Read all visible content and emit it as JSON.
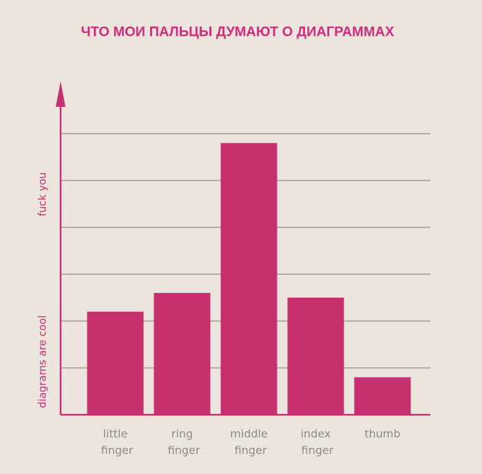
{
  "chart_data": {
    "type": "bar",
    "title": "ЧТО МОИ ПАЛЬЦЫ ДУМАЮТ О ДИАГРАММАХ",
    "y_label_high": "fuck you",
    "y_label_low": "diagrams are cool",
    "categories": [
      "little finger",
      "ring finger",
      "middle finger",
      "index finger",
      "thumb"
    ],
    "values": [
      2.2,
      2.6,
      5.8,
      2.5,
      0.8
    ],
    "color": "#c6306f",
    "ylim": [
      0,
      7
    ],
    "yticks": [
      1,
      2,
      3,
      4,
      5,
      6
    ],
    "grid": true
  }
}
